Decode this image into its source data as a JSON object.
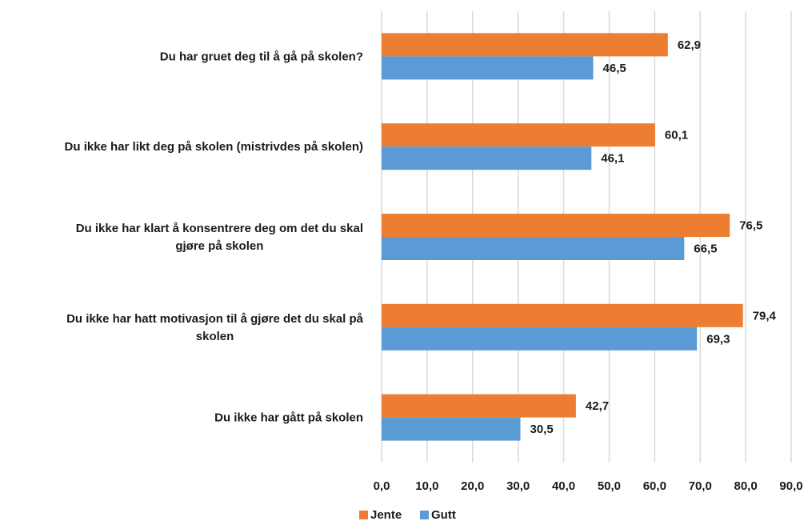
{
  "chart_data": {
    "type": "bar",
    "orientation": "horizontal",
    "categories": [
      "Du har gruet deg til å gå på skolen?",
      "Du ikke har likt deg på skolen (mistrivdes på skolen)",
      "Du ikke har klart å konsentrere deg om det du skal gjøre på skolen",
      "Du ikke har hatt motivasjon til å gjøre det du skal på skolen",
      "Du ikke har gått på skolen"
    ],
    "series": [
      {
        "name": "Jente",
        "color": "#ED7D31",
        "values": [
          62.9,
          60.1,
          76.5,
          79.4,
          42.7
        ],
        "labels": [
          "62,9",
          "60,1",
          "76,5",
          "79,4",
          "42,7"
        ]
      },
      {
        "name": "Gutt",
        "color": "#5B9BD5",
        "values": [
          46.5,
          46.1,
          66.5,
          69.3,
          30.5
        ],
        "labels": [
          "46,5",
          "46,1",
          "66,5",
          "69,3",
          "30,5"
        ]
      }
    ],
    "xlim": [
      0,
      90
    ],
    "ticks": [
      "0,0",
      "10,0",
      "20,0",
      "30,0",
      "40,0",
      "50,0",
      "60,0",
      "70,0",
      "80,0",
      "90,0"
    ],
    "grid": true,
    "legend_position": "bottom"
  }
}
